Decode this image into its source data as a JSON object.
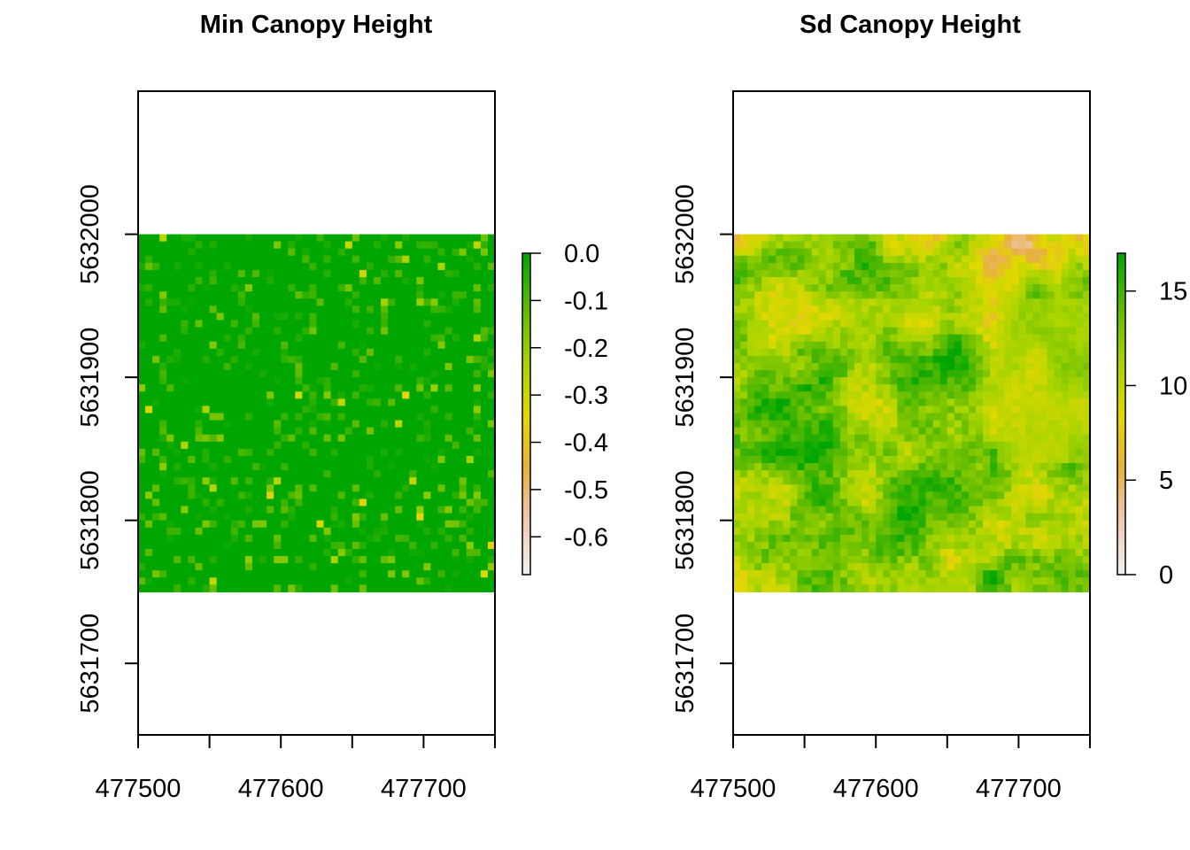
{
  "chart_data": [
    {
      "type": "heatmap",
      "title": "Min Canopy Height",
      "xlabel": "",
      "ylabel": "",
      "xlim": [
        477500,
        477750
      ],
      "ylim": [
        5631650,
        5632100
      ],
      "raster_extent": {
        "x": [
          477500,
          477750
        ],
        "y": [
          5631750,
          5632000
        ]
      },
      "x_ticks": [
        477500,
        477550,
        477600,
        477650,
        477700,
        477750
      ],
      "x_tick_labels": [
        "477500",
        "477600",
        "477700"
      ],
      "x_tick_label_values": [
        477500,
        477600,
        477700
      ],
      "y_ticks": [
        5631700,
        5631800,
        5631900,
        5632000
      ],
      "y_tick_labels": [
        "5631700",
        "5631800",
        "5631900",
        "5632000"
      ],
      "legend": {
        "range": [
          -0.68,
          0.0
        ],
        "tick_values": [
          0.0,
          -0.1,
          -0.2,
          -0.3,
          -0.4,
          -0.5,
          -0.6
        ],
        "tick_labels": [
          "0.0",
          "-0.1",
          "-0.2",
          "-0.3",
          "-0.4",
          "-0.5",
          "-0.6"
        ],
        "colors": [
          "#f2f2f2",
          "#efc8b3",
          "#e8b040",
          "#e2d800",
          "#a6d400",
          "#5cba00",
          "#00a600"
        ]
      },
      "dominant_value": 0.0,
      "description_of_values": "mostly 0.0 with scattered pixels between -0.05 and -0.5"
    },
    {
      "type": "heatmap",
      "title": "Sd Canopy Height",
      "xlabel": "",
      "ylabel": "",
      "xlim": [
        477500,
        477750
      ],
      "ylim": [
        5631650,
        5632100
      ],
      "raster_extent": {
        "x": [
          477500,
          477750
        ],
        "y": [
          5631750,
          5632000
        ]
      },
      "x_ticks": [
        477500,
        477550,
        477600,
        477650,
        477700,
        477750
      ],
      "x_tick_labels": [
        "477500",
        "477600",
        "477700"
      ],
      "x_tick_label_values": [
        477500,
        477600,
        477700
      ],
      "y_ticks": [
        5631700,
        5631800,
        5631900,
        5632000
      ],
      "y_tick_labels": [
        "5631700",
        "5631800",
        "5631900",
        "5632000"
      ],
      "legend": {
        "range": [
          0,
          17
        ],
        "tick_values": [
          15,
          10,
          5,
          0
        ],
        "tick_labels": [
          "15",
          "10",
          "5",
          "0"
        ],
        "colors": [
          "#f2f2f2",
          "#efc8b3",
          "#e8b040",
          "#e2d800",
          "#a6d400",
          "#5cba00",
          "#00a600"
        ]
      },
      "description_of_values": "values range 0 to ~17; low (pink/white) patches near the top, yellow region to the right"
    }
  ]
}
